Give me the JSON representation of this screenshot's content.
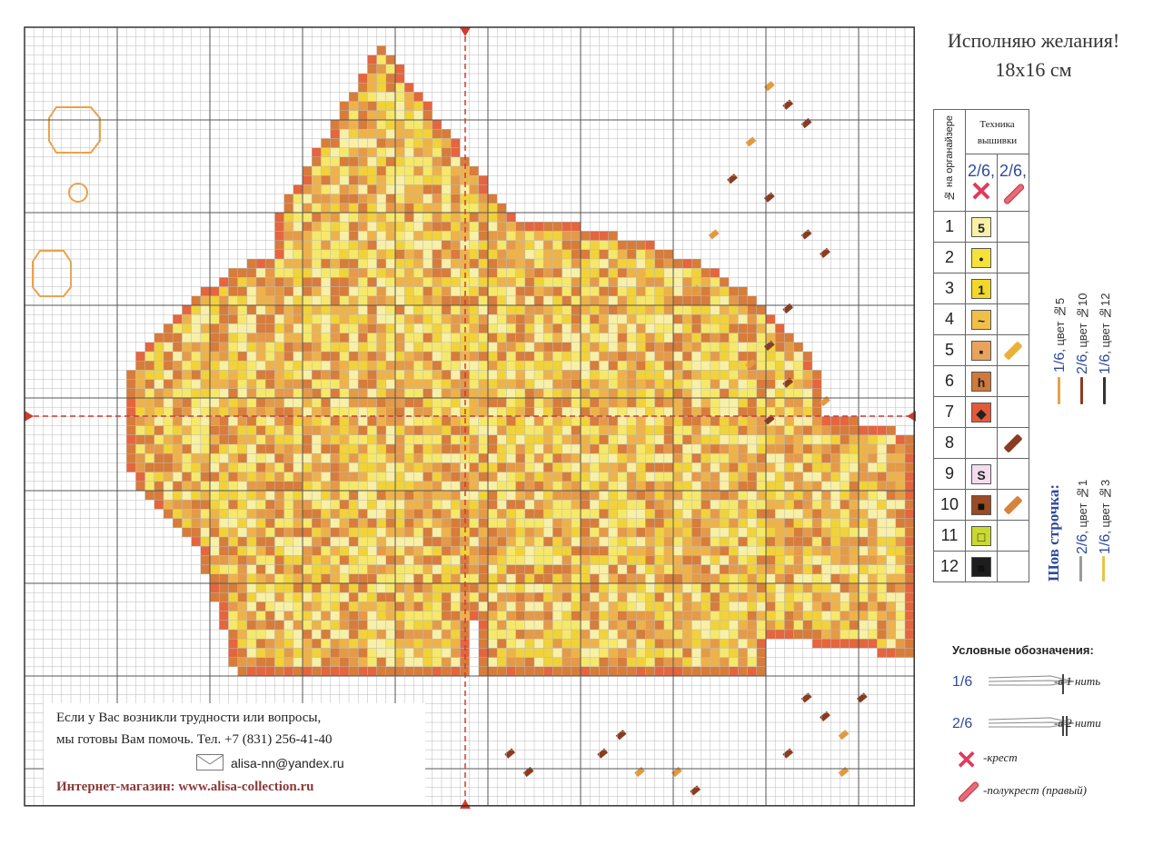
{
  "header": {
    "title": "Исполняю желания!",
    "size": "18х16 см"
  },
  "key_table": {
    "organizer_header": "№ на органайзере",
    "technique_header": "Техника вышивки",
    "cross_label": "2/6,",
    "half_label": "2/6,",
    "rows": [
      {
        "num": "1",
        "symbol": "5",
        "fill": "#f7f0a6",
        "half": ""
      },
      {
        "num": "2",
        "symbol": "•",
        "fill": "#f4e23a",
        "half": ""
      },
      {
        "num": "3",
        "symbol": "1",
        "fill": "#f2d82a",
        "half": ""
      },
      {
        "num": "4",
        "symbol": "~",
        "fill": "#f0bf4a",
        "half": ""
      },
      {
        "num": "5",
        "symbol": "▪",
        "fill": "#e9a35c",
        "half": "#e8b23a"
      },
      {
        "num": "6",
        "symbol": "h",
        "fill": "#cf7a3c",
        "half": ""
      },
      {
        "num": "7",
        "symbol": "◆",
        "fill": "#e25a3a",
        "half": ""
      },
      {
        "num": "8",
        "symbol": "",
        "fill": "",
        "half": "#8a3c22"
      },
      {
        "num": "9",
        "symbol": "S",
        "fill": "#f4dcef",
        "half": ""
      },
      {
        "num": "10",
        "symbol": "■",
        "fill": "#9a4b24",
        "half": "#d7833a"
      },
      {
        "num": "11",
        "symbol": "□",
        "fill": "#c9d832",
        "half": ""
      },
      {
        "num": "12",
        "symbol": "■",
        "fill": "#1e1e1e",
        "half": ""
      }
    ]
  },
  "threads_top": [
    {
      "frac": "1/6",
      "text": ", цвет №5"
    },
    {
      "frac": "2/6",
      "text": ", цвет №10"
    },
    {
      "frac": "1/6",
      "text": ", цвет №12"
    }
  ],
  "backstitch": {
    "title": "Шов строчка:",
    "threads": [
      {
        "frac": "2/6",
        "text": ", цвет №1"
      },
      {
        "frac": "1/6",
        "text": ", цвет №3"
      }
    ]
  },
  "notes": {
    "title": "Условные обозначения:",
    "one_thread_frac": "1/6",
    "one_thread_text": "-в 1 нить",
    "two_thread_frac": "2/6",
    "two_thread_text": "-в 2 нити",
    "cross_text": "-крест",
    "half_text": "-полукрест (правый)"
  },
  "info": {
    "line1": "Если у Вас возникли трудности или вопросы,",
    "line2": "мы готовы Вам помочь.   Тел. +7 (831) 256-41-40",
    "email": "alisa-nn@yandex.ru",
    "shop": "Интернет-магазин: www.alisa-collection.ru"
  },
  "colors": {
    "grid_major": "#555555",
    "grid_minor": "#b8b8b8",
    "center_mark": "#d23a2a",
    "accent_blue": "#2f4a9c"
  }
}
